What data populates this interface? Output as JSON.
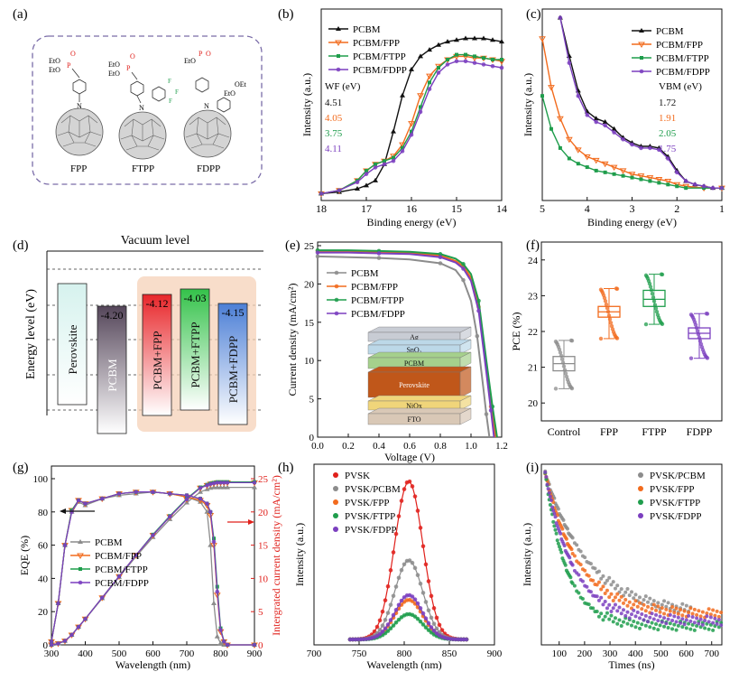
{
  "colors": {
    "black": "#111111",
    "orange": "#f26b1d",
    "green": "#1f9d4c",
    "purple": "#7b3fbf",
    "gray": "#8c8c8c",
    "red": "#e0201b",
    "panel_g_axis": "#e0201b"
  },
  "panel_a": {
    "label": "(a)",
    "molecules": [
      {
        "name": "FPP",
        "substituent": "EtO / EtO / P / O",
        "ring_label": "N"
      },
      {
        "name": "FTPP",
        "substituent": "EtO / EtO / P / O / F F F",
        "ring_label": "N"
      },
      {
        "name": "FDPP",
        "substituent": "EtO / EtO / P / O / OEt",
        "ring_label": "N"
      }
    ]
  },
  "chart_data": [
    {
      "panel": "(b)",
      "type": "line",
      "xlabel": "Binding energy (eV)",
      "ylabel": "Intensity (a.u.)",
      "xlim": [
        18,
        14
      ],
      "x_reversed": true,
      "xticks": [
        18,
        17,
        16,
        15,
        14
      ],
      "legend": [
        "PCBM",
        "PCBM/FPP",
        "PCBM/FTPP",
        "PCBM/FDPP"
      ],
      "annotation_title": "WF (eV)",
      "annotations": [
        "4.51",
        "4.05",
        "3.75",
        "4.11"
      ],
      "series": [
        {
          "name": "PCBM",
          "color": "#111111",
          "x": [
            18,
            17.6,
            17.2,
            17.0,
            16.8,
            16.6,
            16.4,
            16.2,
            16.0,
            15.8,
            15.6,
            15.4,
            15.2,
            15.0,
            14.8,
            14.6,
            14.4,
            14.2,
            14.0
          ],
          "y": [
            0.02,
            0.03,
            0.05,
            0.07,
            0.1,
            0.2,
            0.4,
            0.62,
            0.78,
            0.86,
            0.9,
            0.93,
            0.95,
            0.96,
            0.97,
            0.97,
            0.97,
            0.96,
            0.95
          ]
        },
        {
          "name": "PCBM/FPP",
          "color": "#f26b1d",
          "x": [
            18,
            17.6,
            17.2,
            17.0,
            16.8,
            16.6,
            16.4,
            16.2,
            16.0,
            15.8,
            15.6,
            15.4,
            15.2,
            15.0,
            14.8,
            14.6,
            14.4,
            14.2,
            14.0
          ],
          "y": [
            0.02,
            0.04,
            0.1,
            0.16,
            0.2,
            0.22,
            0.25,
            0.32,
            0.45,
            0.62,
            0.74,
            0.8,
            0.84,
            0.86,
            0.86,
            0.85,
            0.85,
            0.84,
            0.83
          ]
        },
        {
          "name": "PCBM/FTPP",
          "color": "#1f9d4c",
          "x": [
            18,
            17.6,
            17.2,
            17.0,
            16.8,
            16.6,
            16.4,
            16.2,
            16.0,
            15.8,
            15.6,
            15.4,
            15.2,
            15.0,
            14.8,
            14.6,
            14.4,
            14.2,
            14.0
          ],
          "y": [
            0.02,
            0.04,
            0.1,
            0.16,
            0.2,
            0.22,
            0.24,
            0.3,
            0.4,
            0.55,
            0.7,
            0.79,
            0.84,
            0.87,
            0.87,
            0.86,
            0.85,
            0.84,
            0.84
          ]
        },
        {
          "name": "PCBM/FDPP",
          "color": "#7b3fbf",
          "x": [
            18,
            17.6,
            17.2,
            17.0,
            16.8,
            16.6,
            16.4,
            16.2,
            16.0,
            15.8,
            15.6,
            15.4,
            15.2,
            15.0,
            14.8,
            14.6,
            14.4,
            14.2,
            14.0
          ],
          "y": [
            0.02,
            0.04,
            0.09,
            0.14,
            0.18,
            0.2,
            0.22,
            0.28,
            0.38,
            0.52,
            0.66,
            0.76,
            0.81,
            0.83,
            0.83,
            0.82,
            0.81,
            0.8,
            0.79
          ]
        }
      ]
    },
    {
      "panel": "(c)",
      "type": "line",
      "xlabel": "Binding energy (eV)",
      "ylabel": "Intensity (a.u.)",
      "xlim": [
        5,
        1
      ],
      "x_reversed": true,
      "xticks": [
        5,
        4,
        3,
        2,
        1
      ],
      "legend": [
        "PCBM",
        "PCBM/FPP",
        "PCBM/FTPP",
        "PCBM/FDPP"
      ],
      "annotation_title": "VBM (eV)",
      "annotations": [
        "1.72",
        "1.91",
        "2.05",
        "1.75"
      ],
      "series": [
        {
          "name": "PCBM",
          "color": "#111111",
          "x": [
            4.6,
            4.4,
            4.2,
            4.0,
            3.8,
            3.6,
            3.4,
            3.2,
            3.0,
            2.8,
            2.6,
            2.4,
            2.2,
            2.0,
            1.8,
            1.6,
            1.4,
            1.2,
            1.0
          ],
          "y": [
            1.0,
            0.78,
            0.58,
            0.46,
            0.42,
            0.4,
            0.36,
            0.31,
            0.28,
            0.26,
            0.26,
            0.25,
            0.2,
            0.12,
            0.06,
            0.04,
            0.03,
            0.02,
            0.02
          ]
        },
        {
          "name": "PCBM/FPP",
          "color": "#f26b1d",
          "x": [
            5.0,
            4.8,
            4.6,
            4.4,
            4.2,
            4.0,
            3.8,
            3.6,
            3.4,
            3.2,
            3.0,
            2.8,
            2.6,
            2.4,
            2.2,
            2.0,
            1.8,
            1.4,
            1.0
          ],
          "y": [
            0.88,
            0.6,
            0.42,
            0.3,
            0.24,
            0.2,
            0.18,
            0.16,
            0.14,
            0.12,
            0.1,
            0.09,
            0.08,
            0.07,
            0.06,
            0.04,
            0.03,
            0.02,
            0.02
          ]
        },
        {
          "name": "PCBM/FTPP",
          "color": "#1f9d4c",
          "x": [
            5.0,
            4.8,
            4.6,
            4.4,
            4.2,
            4.0,
            3.8,
            3.6,
            3.4,
            3.2,
            3.0,
            2.8,
            2.6,
            2.4,
            2.2,
            2.0,
            1.8,
            1.4,
            1.0
          ],
          "y": [
            0.55,
            0.36,
            0.25,
            0.19,
            0.16,
            0.14,
            0.12,
            0.11,
            0.1,
            0.09,
            0.08,
            0.07,
            0.06,
            0.05,
            0.04,
            0.03,
            0.02,
            0.02,
            0.02
          ]
        },
        {
          "name": "PCBM/FDPP",
          "color": "#7b3fbf",
          "x": [
            4.6,
            4.4,
            4.2,
            4.0,
            3.8,
            3.6,
            3.4,
            3.2,
            3.0,
            2.8,
            2.6,
            2.4,
            2.2,
            2.0,
            1.8,
            1.6,
            1.4,
            1.2,
            1.0
          ],
          "y": [
            1.0,
            0.74,
            0.55,
            0.44,
            0.4,
            0.38,
            0.34,
            0.3,
            0.27,
            0.25,
            0.25,
            0.24,
            0.19,
            0.11,
            0.06,
            0.04,
            0.03,
            0.02,
            0.02
          ]
        }
      ]
    },
    {
      "panel": "(d)",
      "type": "energy-level-diagram",
      "title": "Vacuum level",
      "ylabel": "Energy level  (eV)",
      "boxes": [
        {
          "label": "Perovskite",
          "value": "",
          "color": "#d6f2ee"
        },
        {
          "label": "PCBM",
          "value": "-4.20",
          "color": "#55465a"
        },
        {
          "label": "PCBM+FPP",
          "value": "-4.12",
          "color": "#e8262a"
        },
        {
          "label": "PCBM+FTPP",
          "value": "-4.03",
          "color": "#34c24a"
        },
        {
          "label": "PCBM+FDPP",
          "value": "-4.15",
          "color": "#4c7fd6"
        }
      ]
    },
    {
      "panel": "(e)",
      "type": "line",
      "xlabel": "Voltage (V)",
      "ylabel": "Current density (mA/cm²)",
      "xlim": [
        0,
        1.2
      ],
      "ylim": [
        0,
        25
      ],
      "xticks": [
        "0.0",
        "0.2",
        "0.4",
        "0.6",
        "0.8",
        "1.0",
        "1.2"
      ],
      "yticks": [
        "0",
        "5",
        "10",
        "15",
        "20",
        "25"
      ],
      "legend": [
        "PCBM",
        "PCBM/FPP",
        "PCBM/FTPP",
        "PCBM/FDPP"
      ],
      "inset_layers": [
        "Ag",
        "SnO₂",
        "PCBM",
        "Perovskite",
        "NiOx",
        "FTO"
      ],
      "series": [
        {
          "name": "PCBM",
          "color": "#8c8c8c",
          "x": [
            0,
            0.2,
            0.4,
            0.6,
            0.8,
            0.9,
            0.95,
            1.0,
            1.04,
            1.08,
            1.1,
            1.12
          ],
          "y": [
            23.6,
            23.5,
            23.4,
            23.2,
            22.7,
            21.8,
            20.5,
            17.8,
            13.2,
            6.5,
            3.0,
            0
          ]
        },
        {
          "name": "PCBM/FPP",
          "color": "#f26b1d",
          "x": [
            0,
            0.2,
            0.4,
            0.6,
            0.8,
            0.9,
            0.95,
            1.0,
            1.05,
            1.1,
            1.13,
            1.16
          ],
          "y": [
            24.3,
            24.3,
            24.2,
            24.1,
            23.7,
            23.0,
            22.3,
            20.8,
            17.0,
            9.0,
            4.0,
            0
          ]
        },
        {
          "name": "PCBM/FTPP",
          "color": "#1f9d4c",
          "x": [
            0,
            0.2,
            0.4,
            0.6,
            0.8,
            0.9,
            0.95,
            1.0,
            1.05,
            1.1,
            1.14,
            1.17
          ],
          "y": [
            24.4,
            24.4,
            24.3,
            24.2,
            23.9,
            23.3,
            22.6,
            21.3,
            17.8,
            10.0,
            4.0,
            0
          ]
        },
        {
          "name": "PCBM/FDPP",
          "color": "#7b3fbf",
          "x": [
            0,
            0.2,
            0.4,
            0.6,
            0.8,
            0.9,
            0.95,
            1.0,
            1.05,
            1.1,
            1.13,
            1.15
          ],
          "y": [
            24.1,
            24.1,
            24.0,
            23.9,
            23.5,
            22.8,
            22.0,
            20.4,
            16.5,
            8.5,
            3.5,
            0
          ]
        }
      ]
    },
    {
      "panel": "(f)",
      "type": "box",
      "ylabel": "PCE (%)",
      "ylim": [
        19.5,
        24.5
      ],
      "yticks": [
        "20",
        "21",
        "22",
        "23",
        "24"
      ],
      "categories": [
        "Control",
        "FPP",
        "FTPP",
        "FDPP"
      ],
      "boxes": [
        {
          "name": "Control",
          "color": "#8c8c8c",
          "whisker_low": 20.4,
          "q1": 20.9,
          "median": 21.1,
          "q3": 21.3,
          "whisker_high": 21.75
        },
        {
          "name": "FPP",
          "color": "#f26b1d",
          "whisker_low": 21.8,
          "q1": 22.4,
          "median": 22.55,
          "q3": 22.7,
          "whisker_high": 23.2
        },
        {
          "name": "FTPP",
          "color": "#1f9d4c",
          "whisker_low": 22.2,
          "q1": 22.7,
          "median": 22.9,
          "q3": 23.15,
          "whisker_high": 23.6
        },
        {
          "name": "FDPP",
          "color": "#7b3fbf",
          "whisker_low": 21.25,
          "q1": 21.8,
          "median": 21.95,
          "q3": 22.1,
          "whisker_high": 22.5
        }
      ]
    },
    {
      "panel": "(g)",
      "type": "line",
      "xlabel": "Wavelength (nm)",
      "ylabel": "EQE (%)",
      "y2label": "Intergrated current density (mA/cm²)",
      "xlim": [
        300,
        900
      ],
      "ylim": [
        0,
        100
      ],
      "y2lim": [
        0,
        25
      ],
      "xticks": [
        "300",
        "400",
        "500",
        "600",
        "700",
        "800",
        "900"
      ],
      "yticks": [
        "0",
        "20",
        "40",
        "60",
        "80",
        "100"
      ],
      "y2ticks": [
        "0",
        "5",
        "10",
        "15",
        "20",
        "25"
      ],
      "legend": [
        "PCBM",
        "PCBM/FPP",
        "PCBM/FTPP",
        "PCBM/FDPP"
      ],
      "eqe_x": [
        300,
        320,
        340,
        360,
        380,
        400,
        450,
        500,
        550,
        600,
        650,
        700,
        740,
        760,
        770,
        780,
        790,
        800,
        810,
        820,
        900
      ],
      "series": [
        {
          "name": "PCBM",
          "color": "#8c8c8c",
          "eqe": [
            2,
            25,
            60,
            80,
            86,
            84,
            88,
            90,
            91,
            92,
            91,
            89,
            86,
            80,
            60,
            25,
            5,
            1,
            0,
            0,
            0
          ],
          "jsc": [
            0,
            0.2,
            0.6,
            1.5,
            2.7,
            3.9,
            7.0,
            10.2,
            13.3,
            16.2,
            18.9,
            21.4,
            23.0,
            23.4,
            23.6,
            23.7,
            23.7,
            23.7,
            23.7,
            23.7,
            23.7
          ]
        },
        {
          "name": "PCBM/FPP",
          "color": "#f26b1d",
          "eqe": [
            2,
            25,
            60,
            81,
            87,
            85,
            88,
            91,
            92,
            92,
            91,
            89,
            87,
            84,
            78,
            60,
            30,
            8,
            2,
            0,
            0
          ],
          "jsc": [
            0,
            0.2,
            0.6,
            1.5,
            2.7,
            3.9,
            7.1,
            10.3,
            13.5,
            16.5,
            19.3,
            21.9,
            23.6,
            24.0,
            24.2,
            24.3,
            24.4,
            24.4,
            24.4,
            24.4,
            24.4
          ]
        },
        {
          "name": "PCBM/FTPP",
          "color": "#1f9d4c",
          "eqe": [
            2,
            25,
            60,
            81,
            87,
            85,
            88,
            91,
            92,
            92,
            91,
            90,
            88,
            85,
            80,
            64,
            35,
            10,
            2,
            0,
            0
          ],
          "jsc": [
            0,
            0.2,
            0.6,
            1.5,
            2.7,
            3.9,
            7.1,
            10.3,
            13.5,
            16.6,
            19.4,
            22.0,
            23.7,
            24.1,
            24.3,
            24.4,
            24.5,
            24.5,
            24.5,
            24.5,
            24.5
          ]
        },
        {
          "name": "PCBM/FDPP",
          "color": "#7b3fbf",
          "eqe": [
            2,
            25,
            60,
            80,
            87,
            85,
            88,
            91,
            92,
            92,
            91,
            90,
            88,
            85,
            80,
            62,
            32,
            9,
            2,
            0,
            0
          ],
          "jsc": [
            0,
            0.2,
            0.6,
            1.5,
            2.7,
            3.9,
            7.1,
            10.3,
            13.5,
            16.5,
            19.3,
            21.9,
            23.6,
            24.0,
            24.2,
            24.3,
            24.4,
            24.4,
            24.4,
            24.4,
            24.4
          ]
        }
      ]
    },
    {
      "panel": "(h)",
      "type": "line",
      "xlabel": "Wavelength (nm)",
      "ylabel": "Intensity (a.u.)",
      "xlim": [
        700,
        900
      ],
      "xticks": [
        "700",
        "750",
        "800",
        "850",
        "900"
      ],
      "legend": [
        "PVSK",
        "PVSK/PCBM",
        "PVSK/FPP",
        "PVSK/FTPP",
        "PVSK/FDPP"
      ],
      "peak_center": 805,
      "peak_width": 22,
      "series": [
        {
          "name": "PVSK",
          "color": "#e0201b",
          "peak": 1.0
        },
        {
          "name": "PVSK/PCBM",
          "color": "#8c8c8c",
          "peak": 0.5
        },
        {
          "name": "PVSK/FPP",
          "color": "#f26b1d",
          "peak": 0.25
        },
        {
          "name": "PVSK/FTPP",
          "color": "#1f9d4c",
          "peak": 0.16
        },
        {
          "name": "PVSK/FDPP",
          "color": "#7b3fbf",
          "peak": 0.28
        }
      ]
    },
    {
      "panel": "(i)",
      "type": "scatter",
      "xlabel": "Times (ns)",
      "ylabel": "Intensity (a.u.)",
      "xlim": [
        30,
        740
      ],
      "xticks": [
        "100",
        "200",
        "300",
        "400",
        "500",
        "600",
        "700"
      ],
      "legend": [
        "PVSK/PCBM",
        "PVSK/FPP",
        "PVSK/FTPP",
        "PVSK/FDPP"
      ],
      "series": [
        {
          "name": "PVSK/PCBM",
          "color": "#8c8c8c",
          "tau": 170,
          "floor": 0.16,
          "end": 620
        },
        {
          "name": "PVSK/FPP",
          "color": "#f26b1d",
          "tau": 130,
          "floor": 0.16,
          "end": 740
        },
        {
          "name": "PVSK/FTPP",
          "color": "#1f9d4c",
          "tau": 85,
          "floor": 0.09,
          "end": 740
        },
        {
          "name": "PVSK/FDPP",
          "color": "#7b3fbf",
          "tau": 110,
          "floor": 0.12,
          "end": 740
        }
      ]
    }
  ]
}
